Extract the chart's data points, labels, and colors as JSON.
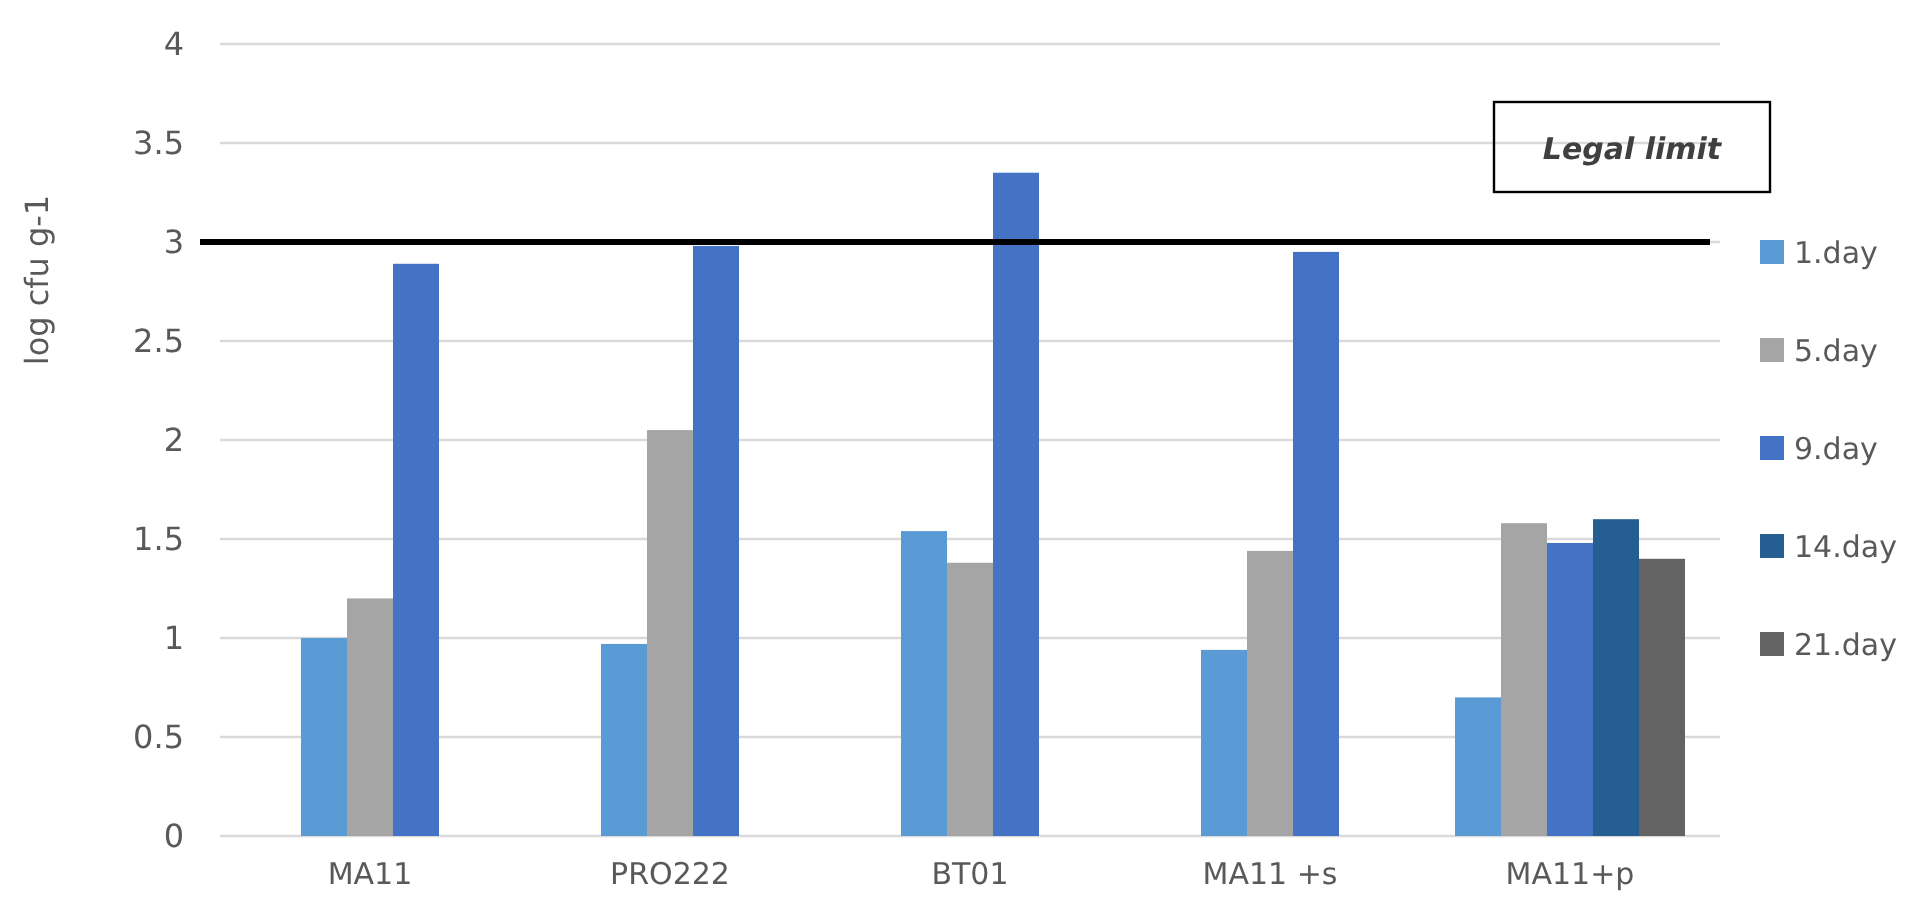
{
  "chart_data": {
    "type": "bar",
    "ylabel": "log cfu g-1",
    "categories": [
      "MA11",
      "PRO222",
      "BT01",
      "MA11 +s",
      "MA11+p"
    ],
    "series": [
      {
        "name": "1.day",
        "color": "#5b9bd5",
        "values": [
          1.0,
          0.97,
          1.54,
          0.94,
          0.7
        ]
      },
      {
        "name": "5.day",
        "color": "#a5a5a5",
        "values": [
          1.2,
          2.05,
          1.38,
          1.44,
          1.58
        ]
      },
      {
        "name": "9.day",
        "color": "#4472c4",
        "values": [
          2.89,
          2.98,
          3.35,
          2.95,
          1.48
        ]
      },
      {
        "name": "14.day",
        "color": "#255e91",
        "values": [
          null,
          null,
          null,
          null,
          1.6
        ]
      },
      {
        "name": "21.day",
        "color": "#636363",
        "values": [
          null,
          null,
          null,
          null,
          1.4
        ]
      }
    ],
    "ylim": [
      0,
      4
    ],
    "yticks": [
      0,
      0.5,
      1,
      1.5,
      2,
      2.5,
      3,
      3.5,
      4
    ],
    "grid": "y",
    "legend": "right",
    "ref_lines": [
      {
        "axis": "y",
        "value": 3,
        "label": "Legal limit",
        "color": "#000000"
      }
    ]
  }
}
